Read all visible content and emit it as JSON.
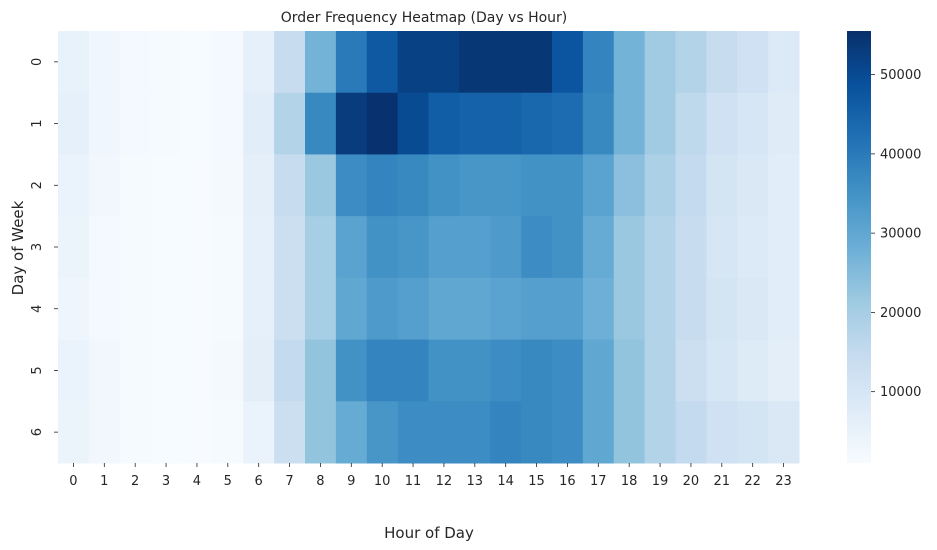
{
  "chart_data": {
    "type": "heatmap",
    "title": "Order Frequency Heatmap (Day vs Hour)",
    "xlabel": "Hour of Day",
    "ylabel": "Day of Week",
    "x": [
      "0",
      "1",
      "2",
      "3",
      "4",
      "5",
      "6",
      "7",
      "8",
      "9",
      "10",
      "11",
      "12",
      "13",
      "14",
      "15",
      "16",
      "17",
      "18",
      "19",
      "20",
      "21",
      "22",
      "23"
    ],
    "y": [
      "0",
      "1",
      "2",
      "3",
      "4",
      "5",
      "6"
    ],
    "values": [
      [
        5000,
        3000,
        2000,
        1500,
        1200,
        2000,
        5500,
        14000,
        27000,
        40000,
        47000,
        52000,
        52000,
        54000,
        54000,
        54000,
        48000,
        38000,
        27000,
        21000,
        18000,
        14000,
        12000,
        8500
      ],
      [
        5500,
        3000,
        2000,
        1500,
        1200,
        2000,
        7000,
        18000,
        37000,
        53000,
        55000,
        50000,
        46000,
        45000,
        45000,
        44000,
        43000,
        37000,
        27000,
        21000,
        16000,
        12000,
        10000,
        7500
      ],
      [
        4500,
        2500,
        1500,
        1200,
        1000,
        1800,
        6000,
        14000,
        22000,
        36000,
        38000,
        37000,
        35000,
        34000,
        34000,
        35000,
        35000,
        31000,
        24000,
        19000,
        15000,
        11000,
        9000,
        7000
      ],
      [
        4000,
        2000,
        1500,
        1200,
        1000,
        1600,
        5500,
        13000,
        20000,
        31000,
        35000,
        34000,
        32000,
        32000,
        33000,
        36000,
        35000,
        29000,
        22000,
        18000,
        14000,
        10000,
        8500,
        7000
      ],
      [
        3500,
        2000,
        1500,
        1200,
        1000,
        1600,
        5500,
        13000,
        20000,
        30000,
        33000,
        32000,
        30000,
        30000,
        31000,
        32000,
        32000,
        28000,
        22000,
        18000,
        14000,
        11000,
        9000,
        7000
      ],
      [
        4500,
        2500,
        1500,
        1200,
        1000,
        1800,
        6500,
        15000,
        23000,
        35000,
        38000,
        38000,
        35000,
        35000,
        36000,
        37000,
        36000,
        30000,
        23000,
        18000,
        13000,
        10000,
        8000,
        6500
      ],
      [
        4000,
        2500,
        1500,
        1200,
        1000,
        1500,
        4500,
        13000,
        23000,
        29000,
        34000,
        36000,
        36000,
        36000,
        38000,
        37000,
        36000,
        30000,
        23000,
        18000,
        15000,
        12000,
        11000,
        9000
      ]
    ],
    "colorbar": {
      "min": 1000,
      "max": 55500,
      "ticks": [
        "10000",
        "20000",
        "30000",
        "40000",
        "50000"
      ],
      "colormap": "Blues"
    },
    "grid": false
  }
}
